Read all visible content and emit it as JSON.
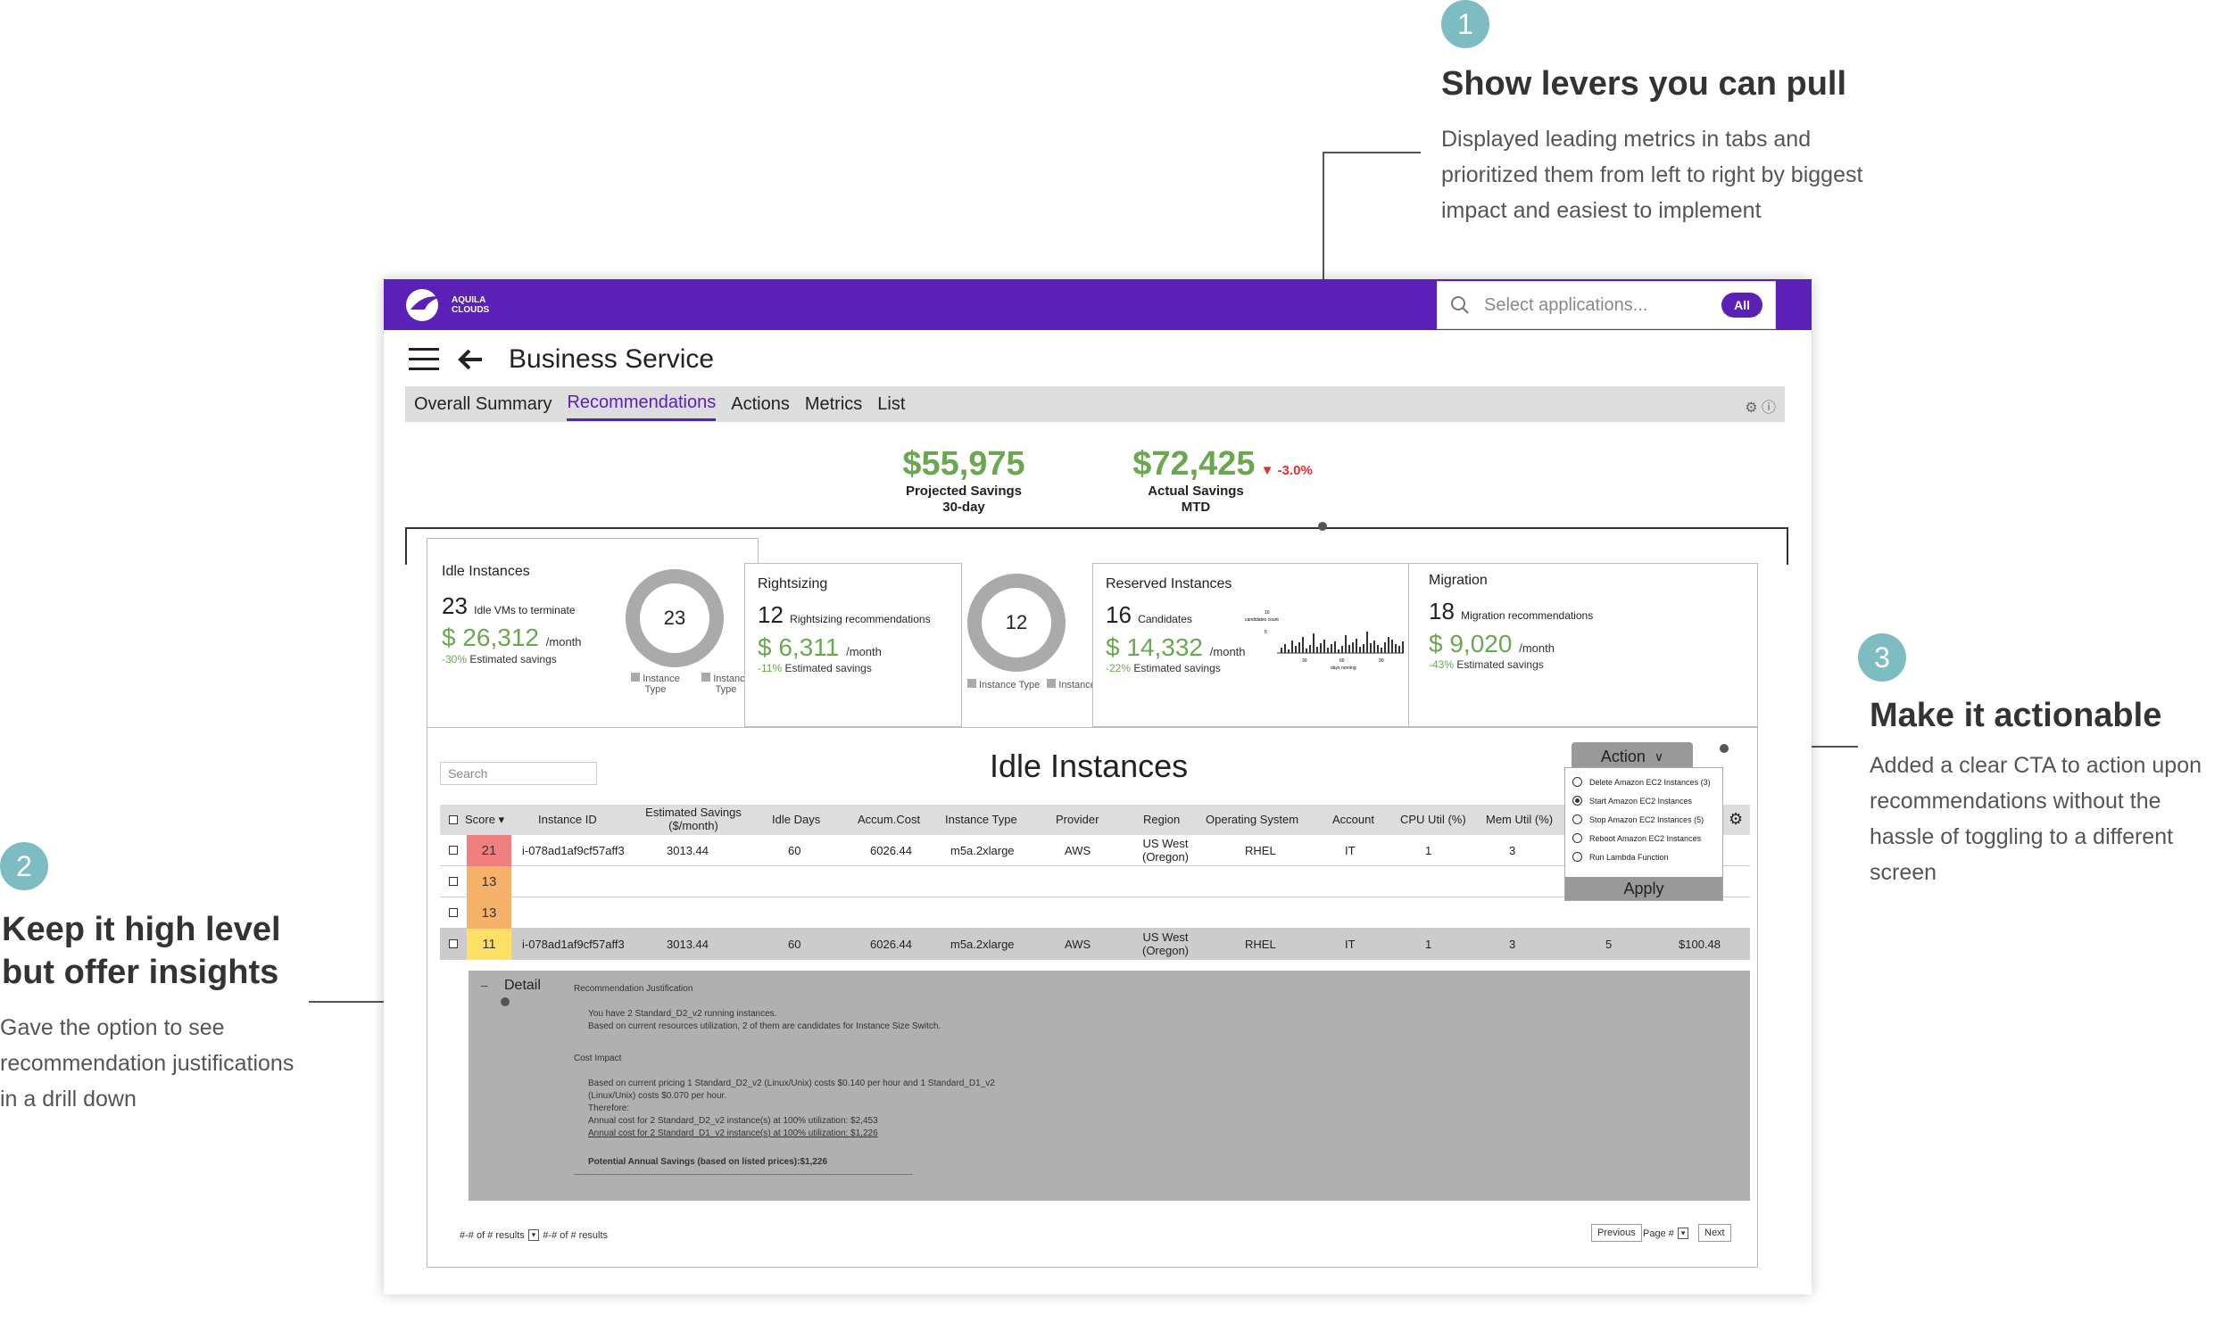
{
  "annotations": [
    {
      "num": "1",
      "title": "Show levers you can pull",
      "body": [
        "Displayed leading metrics in tabs and",
        "prioritized them from left to right by biggest",
        "impact and easiest to implement"
      ]
    },
    {
      "num": "2",
      "title": [
        "Keep it high level",
        "but offer insights"
      ],
      "body": [
        "Gave the option to see",
        "recommendation justifications",
        "in a drill down"
      ]
    },
    {
      "num": "3",
      "title": "Make it actionable",
      "body": [
        "Added a clear CTA to action upon",
        "recommendations without the",
        "hassle of toggling to a different",
        "screen"
      ]
    }
  ],
  "app": {
    "brand": [
      "AQUILA",
      "CLOUDS"
    ],
    "search_placeholder": "Select applications...",
    "search_filter": "All",
    "page_title": "Business Service",
    "tabs": [
      "Overall Summary",
      "Recommendations",
      "Actions",
      "Metrics",
      "List"
    ],
    "active_tab": "Recommendations",
    "kpis": [
      {
        "value": "$55,975",
        "label": [
          "Projected Savings",
          "30-day"
        ],
        "delta": ""
      },
      {
        "value": "$72,425",
        "label": [
          "Actual Savings",
          "MTD"
        ],
        "delta": "▼ -3.0%"
      }
    ],
    "cards": [
      {
        "title": "Idle Instances",
        "count": "23",
        "count_label": "Idle VMs to terminate",
        "money": "$ 26,312",
        "per": "/month",
        "pct": "-30%",
        "est": "Estimated savings",
        "donut": "23",
        "legend": [
          "Instance Type",
          "Instance Type"
        ]
      },
      {
        "title": "Rightsizing",
        "count": "12",
        "count_label": "Rightsizing recommendations",
        "money": "$ 6,311",
        "per": "/month",
        "pct": "-11%",
        "est": "Estimated savings",
        "donut": "12",
        "legend": [
          "Instance Type",
          "Instance Type"
        ]
      },
      {
        "title": "Reserved Instances",
        "count": "16",
        "count_label": "Candidates",
        "money": "$ 14,332",
        "per": "/month",
        "pct": "-22%",
        "est": "Estimated savings",
        "chart": {
          "x_ticks": [
            "30",
            "60",
            "90"
          ],
          "x_label": "days running",
          "y_ticks": [
            "10",
            "5"
          ],
          "y_label": "candidates count"
        }
      },
      {
        "title": "Migration",
        "count": "18",
        "count_label": "Migration recommendations",
        "money": "$ 9,020",
        "per": "/month",
        "pct": "-43%",
        "est": "Estimated savings"
      }
    ],
    "table": {
      "title": "Idle Instances",
      "search_placeholder": "Search",
      "columns": [
        "Score",
        "Instance ID",
        "Estimated Savings ($/month)",
        "Idle Days",
        "Accum.Cost",
        "Instance Type",
        "Provider",
        "Region",
        "Operating System",
        "Account",
        "CPU Util (%)",
        "Mem Util (%)"
      ],
      "rows": [
        {
          "score": "21",
          "score_color": "#f08080",
          "id": "i-078ad1af9cf57aff3",
          "savings": "3013.44",
          "idle": "60",
          "cost": "6026.44",
          "type": "m5a.2xlarge",
          "provider": "AWS",
          "region": "US West (Oregon)",
          "os": "RHEL",
          "account": "IT",
          "cpu": "1",
          "mem": "3"
        },
        {
          "score": "13",
          "score_color": "#f6b26b"
        },
        {
          "score": "13",
          "score_color": "#f6b26b"
        },
        {
          "score": "11",
          "score_color": "#ffe066",
          "id": "i-078ad1af9cf57aff3",
          "savings": "3013.44",
          "idle": "60",
          "cost": "6026.44",
          "type": "m5a.2xlarge",
          "provider": "AWS",
          "region": "US West (Oregon)",
          "os": "RHEL",
          "account": "IT",
          "cpu": "1",
          "mem": "3",
          "extra1": "5",
          "extra2": "$100.48"
        }
      ],
      "detail": {
        "toggle": "Detail",
        "heading": "Recommendation Justification",
        "lines": [
          "You have 2 Standard_D2_v2 running instances.",
          "Based on current resources utilization, 2 of them are candidates for Instance Size Switch."
        ],
        "cost_heading": "Cost Impact",
        "cost_lines": [
          "Based on current pricing 1 Standard_D2_v2 (Linux/Unix) costs $0.140 per hour and 1 Standard_D1_v2",
          "(Linux/Unix) costs $0.070 per hour.",
          "Therefore:",
          "Annual cost for 2 Standard_D2_v2 instance(s) at 100% utilization:      $2,453",
          "Annual cost for 2 Standard_D1_v2 instance(s) at 100% utilization:      $1,226"
        ],
        "potential": "Potential Annual Savings (based on listed prices):$1,226"
      },
      "action": {
        "button": "Action",
        "options": [
          "Delete Amazon EC2 Instances (3)",
          "Start Amazon EC2 Instances",
          "Stop Amazon EC2 Instances (5)",
          "Reboot Amazon EC2 Instances",
          "Run Lambda Function"
        ],
        "selected_index": 1,
        "apply": "Apply"
      },
      "footer": {
        "results_left": "#-# of # results",
        "results_right": "#-# of # results",
        "previous": "Previous",
        "page": "Page #",
        "next": "Next"
      }
    }
  }
}
